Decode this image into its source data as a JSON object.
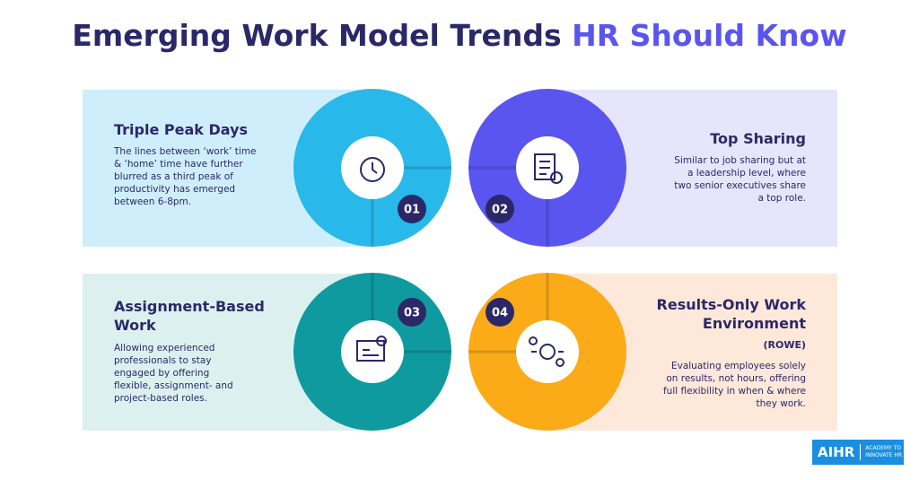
{
  "header": {
    "title": "Emerging Work Model Trends",
    "highlight": "HR Should Know"
  },
  "cards": [
    {
      "number": "01",
      "title": "Triple Peak Days",
      "text": "The lines between ‘work’ time & ‘home’ time have further blurred as a third peak of productivity has emerged between 6-8pm."
    },
    {
      "number": "02",
      "title": "Top Sharing",
      "text": "Similar to job sharing but at a leadership level, where two senior executives share a top role."
    },
    {
      "number": "03",
      "title": "Assignment-Based Work",
      "text": "Allowing experienced professionals to stay engaged by offering flexible, assignment- and project-based roles."
    },
    {
      "number": "04",
      "title": "Results-Only Work Environment",
      "subtitle": "(ROWE)",
      "text": "Evaluating employees solely on results, not hours, offering full flexibility in when & where they work."
    }
  ],
  "logo": {
    "name": "AIHR",
    "tagline": "ACADEMY TO INNOVATE HR"
  }
}
